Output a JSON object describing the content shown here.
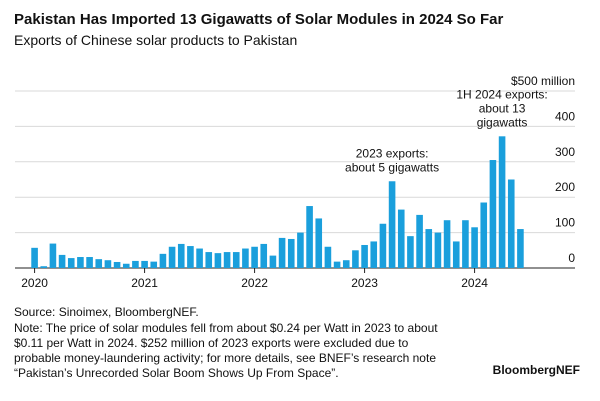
{
  "chart_data": {
    "type": "bar",
    "title": "Pakistan Has Imported 13 Gigawatts of Solar Modules in 2024 So Far",
    "subtitle": "Exports of Chinese solar products to Pakistan",
    "categories": [
      "2020",
      null,
      null,
      null,
      null,
      null,
      null,
      null,
      null,
      null,
      null,
      null,
      "2021",
      null,
      null,
      null,
      null,
      null,
      null,
      null,
      null,
      null,
      null,
      null,
      "2022",
      null,
      null,
      null,
      null,
      null,
      null,
      null,
      null,
      null,
      null,
      null,
      "2023",
      null,
      null,
      null,
      null,
      null,
      null,
      null,
      null,
      null,
      null,
      null,
      "2024",
      null,
      null,
      null,
      null,
      null
    ],
    "values": [
      57,
      5,
      69,
      37,
      28,
      31,
      31,
      25,
      22,
      17,
      12,
      20,
      20,
      18,
      40,
      60,
      68,
      62,
      55,
      45,
      42,
      45,
      45,
      55,
      60,
      68,
      35,
      85,
      82,
      100,
      175,
      140,
      60,
      18,
      22,
      50,
      65,
      75,
      125,
      245,
      165,
      90,
      150,
      110,
      100,
      135,
      75,
      135,
      115,
      185,
      305,
      372,
      250,
      110
    ],
    "color": "#1a9fdc",
    "ylim": [
      0,
      500
    ],
    "yticks": [
      0,
      100,
      200,
      300,
      400,
      {
        "value": 500,
        "label": "$500 million"
      }
    ],
    "grid": true,
    "annotations": [
      {
        "text": [
          "2023 exports:",
          "about 5 gigawatts"
        ],
        "index": 39
      },
      {
        "text": [
          "1H 2024 exports:",
          "about 13",
          "gigawatts"
        ],
        "index": 51
      }
    ],
    "source": "Source: Sinoimex, BloombergNEF.",
    "note": [
      "Note: The price of solar modules fell from about $0.24 per Watt in 2023 to about",
      "$0.11 per Watt in 2024. $252 million of 2023 exports were excluded due to",
      "probable money-laundering activity; for more details, see BNEF’s research note",
      "“Pakistan’s Unrecorded Solar Boom Shows Up From Space”."
    ],
    "brand": "BloombergNEF"
  }
}
